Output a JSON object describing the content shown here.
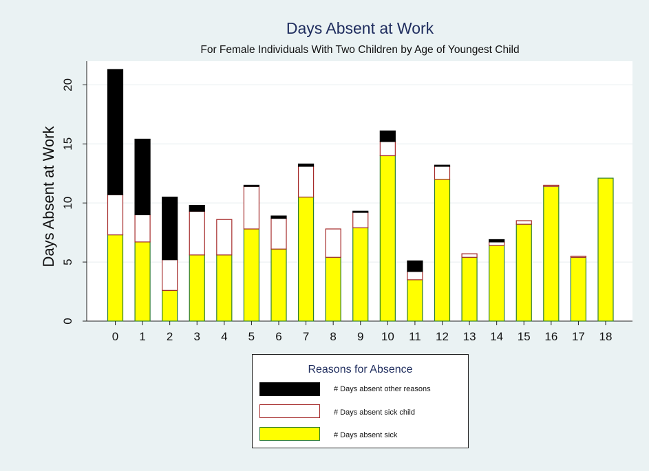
{
  "chart_data": {
    "type": "bar",
    "stacked": true,
    "title": "Days Absent at Work",
    "subtitle": "For Female Individuals With Two Children by Age of Youngest Child",
    "xlabel": "",
    "ylabel": "Days Absent at Work",
    "ylim": [
      0,
      22
    ],
    "yticks": [
      0,
      5,
      10,
      15,
      20
    ],
    "grid": true,
    "categories": [
      "0",
      "1",
      "2",
      "3",
      "4",
      "5",
      "6",
      "7",
      "8",
      "9",
      "10",
      "11",
      "12",
      "13",
      "14",
      "15",
      "16",
      "17",
      "18"
    ],
    "series": [
      {
        "name": "# Days absent sick",
        "color": "#ffff00",
        "values": [
          7.3,
          6.7,
          2.6,
          5.6,
          5.6,
          7.8,
          6.1,
          10.5,
          5.4,
          7.9,
          14.0,
          3.5,
          12.0,
          5.4,
          6.4,
          8.2,
          11.4,
          5.4,
          12.1
        ]
      },
      {
        "name": "# Days absent sick child",
        "color": "#ffffff",
        "values": [
          3.4,
          2.3,
          2.6,
          3.7,
          3.0,
          3.6,
          2.6,
          2.6,
          2.4,
          1.3,
          1.2,
          0.7,
          1.1,
          0.3,
          0.3,
          0.3,
          0.1,
          0.1,
          0.0
        ]
      },
      {
        "name": "# Days absent other reasons",
        "color": "#000000",
        "values": [
          10.6,
          6.4,
          5.3,
          0.5,
          0.0,
          0.1,
          0.2,
          0.2,
          0.0,
          0.1,
          0.9,
          0.9,
          0.1,
          0.0,
          0.2,
          0.0,
          0.0,
          0.0,
          0.0
        ]
      }
    ],
    "legend": {
      "title": "Reasons for Absence",
      "placement": "bottom",
      "order": [
        "# Days absent other reasons",
        "# Days absent sick child",
        "# Days absent sick"
      ]
    }
  }
}
